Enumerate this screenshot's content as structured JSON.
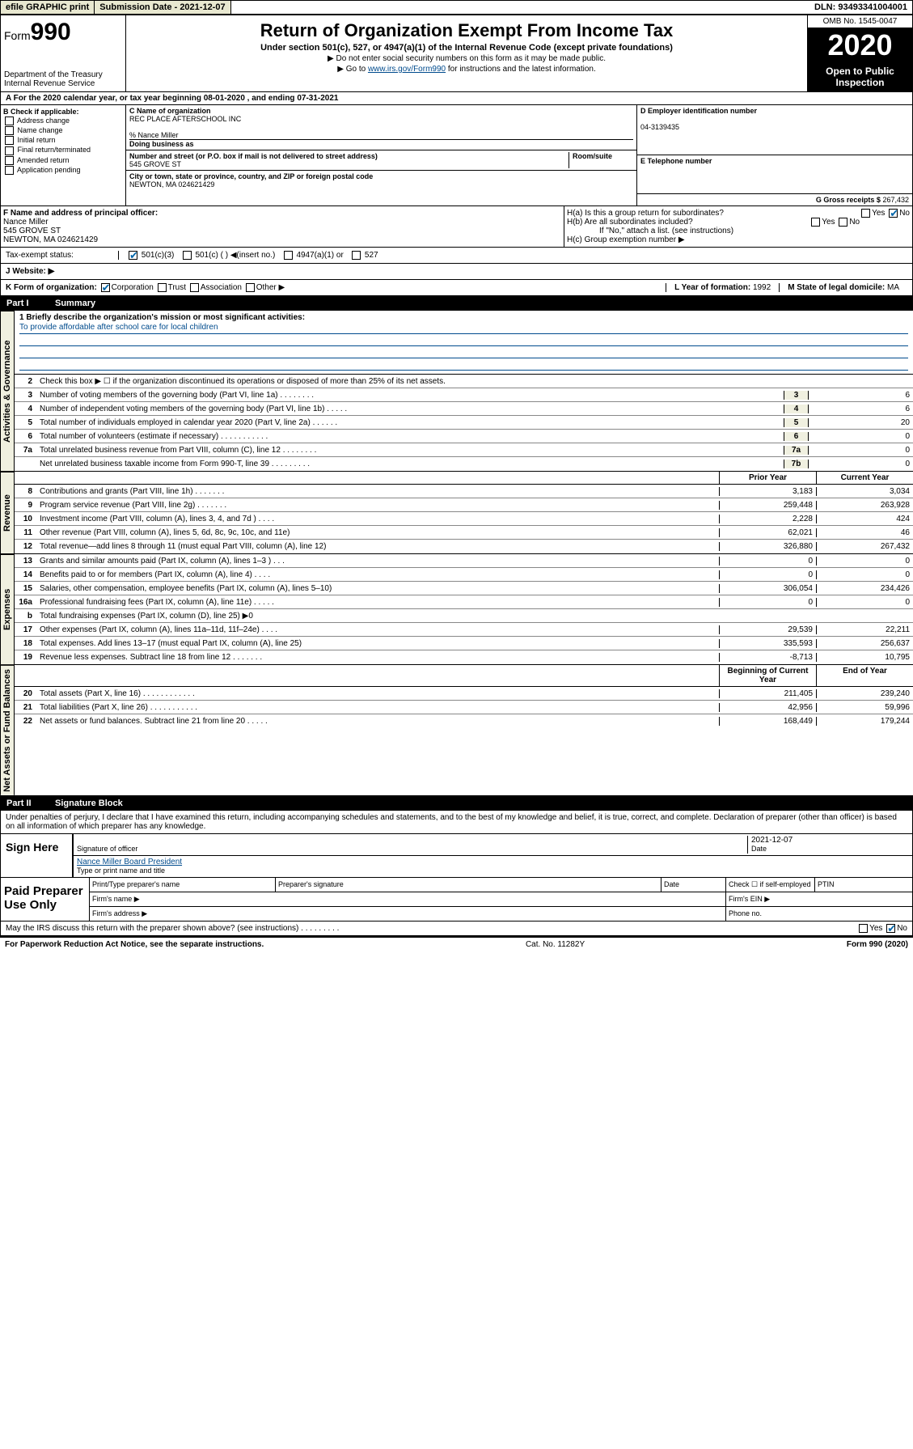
{
  "topbar": {
    "efile": "efile GRAPHIC print",
    "submission_label": "Submission Date - 2021-12-07",
    "dln": "DLN: 93493341004001"
  },
  "header": {
    "form_prefix": "Form",
    "form_number": "990",
    "dept": "Department of the Treasury\nInternal Revenue Service",
    "title": "Return of Organization Exempt From Income Tax",
    "subtitle": "Under section 501(c), 527, or 4947(a)(1) of the Internal Revenue Code (except private foundations)",
    "note1": "▶ Do not enter social security numbers on this form as it may be made public.",
    "note2_pre": "▶ Go to ",
    "note2_link": "www.irs.gov/Form990",
    "note2_post": " for instructions and the latest information.",
    "omb": "OMB No. 1545-0047",
    "year": "2020",
    "open": "Open to Public\nInspection"
  },
  "period": {
    "text": "A For the 2020 calendar year, or tax year beginning 08-01-2020    , and ending 07-31-2021"
  },
  "boxB": {
    "label": "B Check if applicable:",
    "items": [
      "Address change",
      "Name change",
      "Initial return",
      "Final return/terminated",
      "Amended return",
      "Application pending"
    ]
  },
  "boxC": {
    "name_label": "C Name of organization",
    "name": "REC PLACE AFTERSCHOOL INC",
    "care_of": "% Nance Miller",
    "dba_label": "Doing business as",
    "addr_label": "Number and street (or P.O. box if mail is not delivered to street address)",
    "room_label": "Room/suite",
    "addr": "545 GROVE ST",
    "city_label": "City or town, state or province, country, and ZIP or foreign postal code",
    "city": "NEWTON, MA  024621429"
  },
  "boxD": {
    "label": "D Employer identification number",
    "value": "04-3139435"
  },
  "boxE": {
    "label": "E Telephone number",
    "value": ""
  },
  "boxG": {
    "label": "G Gross receipts $",
    "value": "267,432"
  },
  "boxF": {
    "label": "F  Name and address of principal officer:",
    "name": "Nance Miller",
    "addr1": "545 GROVE ST",
    "addr2": "NEWTON, MA  024621429"
  },
  "boxH": {
    "a": "H(a)  Is this a group return for subordinates?",
    "b": "H(b)  Are all subordinates included?",
    "note": "If \"No,\" attach a list. (see instructions)",
    "c": "H(c)  Group exemption number ▶"
  },
  "taxstatus": {
    "label": "Tax-exempt status:",
    "opts": [
      "501(c)(3)",
      "501(c) (   ) ◀(insert no.)",
      "4947(a)(1) or",
      "527"
    ]
  },
  "website": {
    "label": "J   Website: ▶",
    "value": ""
  },
  "kline": {
    "label": "K Form of organization:",
    "opts": [
      "Corporation",
      "Trust",
      "Association",
      "Other ▶"
    ],
    "l_label": "L Year of formation:",
    "l_val": "1992",
    "m_label": "M State of legal domicile:",
    "m_val": "MA"
  },
  "part1": {
    "num": "Part I",
    "title": "Summary",
    "line1_label": "1  Briefly describe the organization's mission or most significant activities:",
    "mission": "To provide affordable after school care for local children",
    "line2": "Check this box ▶ ☐  if the organization discontinued its operations or disposed of more than 25% of its net assets."
  },
  "sections": {
    "governance": "Activities & Governance",
    "revenue": "Revenue",
    "expenses": "Expenses",
    "netassets": "Net Assets or\nFund Balances"
  },
  "gov_lines": [
    {
      "n": "3",
      "d": "Number of voting members of the governing body (Part VI, line 1a)   .   .   .   .   .   .   .   .",
      "box": "3",
      "v": "6"
    },
    {
      "n": "4",
      "d": "Number of independent voting members of the governing body (Part VI, line 1b)   .   .   .   .   .",
      "box": "4",
      "v": "6"
    },
    {
      "n": "5",
      "d": "Total number of individuals employed in calendar year 2020 (Part V, line 2a)  .   .   .   .   .   .",
      "box": "5",
      "v": "20"
    },
    {
      "n": "6",
      "d": "Total number of volunteers (estimate if necessary)   .   .   .   .   .   .   .   .   .   .   .",
      "box": "6",
      "v": "0"
    },
    {
      "n": "7a",
      "d": "Total unrelated business revenue from Part VIII, column (C), line 12  .   .   .   .   .   .   .   .",
      "box": "7a",
      "v": "0"
    },
    {
      "n": "",
      "d": "Net unrelated business taxable income from Form 990-T, line 39  .   .   .   .   .   .   .   .   .",
      "box": "7b",
      "v": "0"
    }
  ],
  "col_headers": {
    "prior": "Prior Year",
    "current": "Current Year",
    "begin": "Beginning of Current Year",
    "end": "End of Year"
  },
  "rev_lines": [
    {
      "n": "8",
      "d": "Contributions and grants (Part VIII, line 1h)   .   .   .   .   .   .   .",
      "p": "3,183",
      "c": "3,034"
    },
    {
      "n": "9",
      "d": "Program service revenue (Part VIII, line 2g)   .   .   .   .   .   .   .",
      "p": "259,448",
      "c": "263,928"
    },
    {
      "n": "10",
      "d": "Investment income (Part VIII, column (A), lines 3, 4, and 7d )   .   .   .   .",
      "p": "2,228",
      "c": "424"
    },
    {
      "n": "11",
      "d": "Other revenue (Part VIII, column (A), lines 5, 6d, 8c, 9c, 10c, and 11e)",
      "p": "62,021",
      "c": "46"
    },
    {
      "n": "12",
      "d": "Total revenue—add lines 8 through 11 (must equal Part VIII, column (A), line 12)",
      "p": "326,880",
      "c": "267,432"
    }
  ],
  "exp_lines": [
    {
      "n": "13",
      "d": "Grants and similar amounts paid (Part IX, column (A), lines 1–3 )   .   .   .",
      "p": "0",
      "c": "0"
    },
    {
      "n": "14",
      "d": "Benefits paid to or for members (Part IX, column (A), line 4)   .   .   .   .",
      "p": "0",
      "c": "0"
    },
    {
      "n": "15",
      "d": "Salaries, other compensation, employee benefits (Part IX, column (A), lines 5–10)",
      "p": "306,054",
      "c": "234,426"
    },
    {
      "n": "16a",
      "d": "Professional fundraising fees (Part IX, column (A), line 11e)   .   .   .   .   .",
      "p": "0",
      "c": "0"
    },
    {
      "n": "b",
      "d": "Total fundraising expenses (Part IX, column (D), line 25) ▶0",
      "p": "",
      "c": "",
      "shaded": true
    },
    {
      "n": "17",
      "d": "Other expenses (Part IX, column (A), lines 11a–11d, 11f–24e)   .   .   .   .",
      "p": "29,539",
      "c": "22,211"
    },
    {
      "n": "18",
      "d": "Total expenses. Add lines 13–17 (must equal Part IX, column (A), line 25)",
      "p": "335,593",
      "c": "256,637"
    },
    {
      "n": "19",
      "d": "Revenue less expenses. Subtract line 18 from line 12   .   .   .   .   .   .   .",
      "p": "-8,713",
      "c": "10,795"
    }
  ],
  "net_lines": [
    {
      "n": "20",
      "d": "Total assets (Part X, line 16)   .   .   .   .   .   .   .   .   .   .   .   .",
      "p": "211,405",
      "c": "239,240"
    },
    {
      "n": "21",
      "d": "Total liabilities (Part X, line 26)   .   .   .   .   .   .   .   .   .   .   .",
      "p": "42,956",
      "c": "59,996"
    },
    {
      "n": "22",
      "d": "Net assets or fund balances. Subtract line 21 from line 20   .   .   .   .   .",
      "p": "168,449",
      "c": "179,244"
    }
  ],
  "part2": {
    "num": "Part II",
    "title": "Signature Block"
  },
  "declare": "Under penalties of perjury, I declare that I have examined this return, including accompanying schedules and statements, and to the best of my knowledge and belief, it is true, correct, and complete. Declaration of preparer (other than officer) is based on all information of which preparer has any knowledge.",
  "sign": {
    "label": "Sign Here",
    "sig_of_officer": "Signature of officer",
    "date": "2021-12-07",
    "date_label": "Date",
    "name": "Nance Miller  Board President",
    "name_label": "Type or print name and title"
  },
  "prep": {
    "label": "Paid Preparer Use Only",
    "cols": [
      "Print/Type preparer's name",
      "Preparer's signature",
      "Date",
      "Check ☐ if self-employed",
      "PTIN"
    ],
    "firm_name": "Firm's name   ▶",
    "firm_ein": "Firm's EIN ▶",
    "firm_addr": "Firm's address ▶",
    "phone": "Phone no."
  },
  "discuss": "May the IRS discuss this return with the preparer shown above? (see instructions)   .   .   .   .   .   .   .   .   .",
  "footer": {
    "pra": "For Paperwork Reduction Act Notice, see the separate instructions.",
    "cat": "Cat. No. 11282Y",
    "form": "Form 990 (2020)"
  }
}
